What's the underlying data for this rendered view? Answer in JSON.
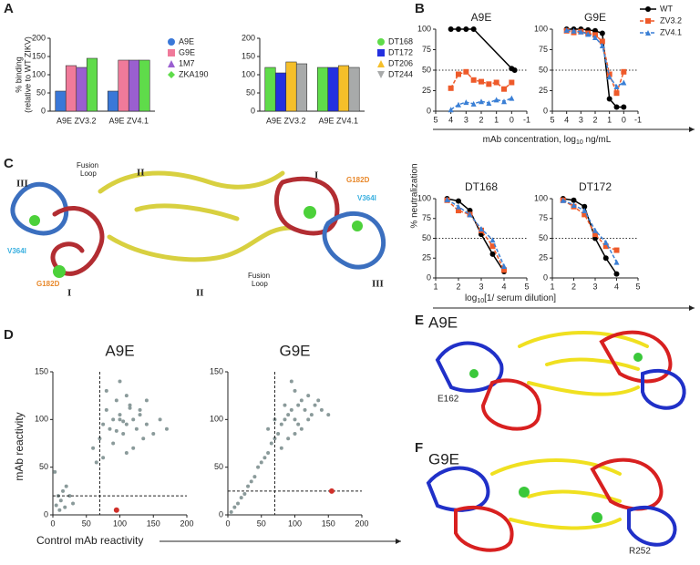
{
  "panel_labels": [
    "A",
    "B",
    "C",
    "D",
    "E",
    "F"
  ],
  "shared_labels": {
    "neutralization_ylabel": "% neutralization",
    "mab_xlabel": [
      "mAb concentration, log",
      "10",
      " ng/mL"
    ],
    "serum_xlabel": [
      "log",
      "10",
      "[1/ serum dilution]"
    ],
    "scatter_ylabel": "mAb reactivity",
    "scatter_xlabel": "Control mAb reactivity"
  },
  "structures": {
    "C": {
      "domains": [
        "III",
        "II",
        "I",
        "I",
        "II",
        "III"
      ],
      "fusion_loop": [
        "Fusion",
        "Loop"
      ],
      "mutations": [
        "G182D",
        "V364I",
        "V364I",
        "G182D"
      ]
    },
    "E": {
      "title": "A9E",
      "residue": "E162"
    },
    "F": {
      "title": "G9E",
      "residue": "R252"
    }
  },
  "chart_data": [
    {
      "type": "bar",
      "ylabel": [
        "% binding",
        "(relative to WT ZIKV)"
      ],
      "categories": [
        "A9E ZV3.2",
        "A9E ZV4.1"
      ],
      "series": [
        {
          "name": "A9E",
          "color": "#3a78d8",
          "marker": "circle",
          "values": [
            55,
            55
          ]
        },
        {
          "name": "G9E",
          "color": "#f07a9a",
          "marker": "square",
          "values": [
            125,
            140
          ]
        },
        {
          "name": "1M7",
          "color": "#9a5fd0",
          "marker": "triangle",
          "values": [
            120,
            140
          ]
        },
        {
          "name": "ZKA190",
          "color": "#5fdc4a",
          "marker": "diamond",
          "values": [
            145,
            140
          ]
        }
      ],
      "ylim": [
        0,
        200
      ],
      "yticks": [
        0,
        50,
        100,
        150,
        200
      ]
    },
    {
      "type": "bar",
      "categories": [
        "A9E ZV3.2",
        "A9E ZV4.1"
      ],
      "series": [
        {
          "name": "DT168",
          "color": "#5fdc4a",
          "marker": "circle",
          "values": [
            120,
            120
          ]
        },
        {
          "name": "DT172",
          "color": "#2430e0",
          "marker": "square",
          "values": [
            105,
            120
          ]
        },
        {
          "name": "DT206",
          "color": "#f5bf2a",
          "marker": "triangle",
          "values": [
            135,
            125
          ]
        },
        {
          "name": "DT244",
          "color": "#a8aaaa",
          "marker": "invtriangle",
          "values": [
            130,
            120
          ]
        }
      ],
      "ylim": [
        0,
        200
      ],
      "yticks": [
        0,
        50,
        100,
        150,
        200
      ]
    },
    {
      "type": "line",
      "title": "A9E",
      "xlim": [
        5,
        -1
      ],
      "xticks": [
        5,
        4,
        3,
        2,
        1,
        0,
        -1
      ],
      "ylim": [
        0,
        100
      ],
      "yticks": [
        0,
        25,
        50,
        75,
        100
      ],
      "reference": 50,
      "series": [
        {
          "name": "WT",
          "color": "#000000",
          "marker": "circle",
          "dash": false,
          "x": [
            4,
            3.5,
            3,
            2.5,
            0,
            -0.2
          ],
          "values": [
            100,
            100,
            100,
            100,
            52,
            50
          ]
        },
        {
          "name": "ZV3.2",
          "color": "#ee5a2a",
          "marker": "square",
          "dash": true,
          "x": [
            4,
            3.5,
            3,
            2.5,
            2,
            1.5,
            1,
            0.5,
            0
          ],
          "values": [
            28,
            45,
            48,
            38,
            36,
            33,
            35,
            27,
            35
          ]
        },
        {
          "name": "ZV4.1",
          "color": "#3a7fd5",
          "marker": "triangle",
          "dash": true,
          "x": [
            4,
            3.5,
            3,
            2.5,
            2,
            1.5,
            1,
            0.5,
            0
          ],
          "values": [
            2,
            8,
            11,
            9,
            12,
            10,
            14,
            12,
            16
          ]
        }
      ]
    },
    {
      "type": "line",
      "title": "G9E",
      "xlim": [
        5,
        -1
      ],
      "xticks": [
        5,
        4,
        3,
        2,
        1,
        0,
        -1
      ],
      "ylim": [
        0,
        100
      ],
      "yticks": [
        0,
        25,
        50,
        75,
        100
      ],
      "reference": 50,
      "series": [
        {
          "color": "#000000",
          "marker": "circle",
          "dash": false,
          "x": [
            4,
            3.5,
            3,
            2.5,
            2,
            1.5,
            1,
            0.5,
            0
          ],
          "values": [
            100,
            100,
            100,
            99,
            98,
            95,
            15,
            5,
            5
          ]
        },
        {
          "color": "#ee5a2a",
          "marker": "square",
          "dash": true,
          "x": [
            4,
            3.5,
            3,
            2.5,
            2,
            1.5,
            1,
            0.5,
            0
          ],
          "values": [
            98,
            96,
            97,
            95,
            93,
            85,
            45,
            22,
            48
          ]
        },
        {
          "color": "#3a7fd5",
          "marker": "triangle",
          "dash": true,
          "x": [
            4,
            3.5,
            3,
            2.5,
            2,
            1.5,
            1,
            0.5,
            0
          ],
          "values": [
            99,
            98,
            97,
            94,
            90,
            80,
            42,
            30,
            35
          ]
        }
      ]
    },
    {
      "type": "line",
      "title": "DT168",
      "xlim": [
        1,
        5
      ],
      "xticks": [
        1,
        2,
        3,
        4,
        5
      ],
      "ylim": [
        0,
        100
      ],
      "yticks": [
        0,
        25,
        50,
        75,
        100
      ],
      "reference": 50,
      "series": [
        {
          "color": "#000000",
          "marker": "circle",
          "dash": false,
          "x": [
            1.5,
            2,
            2.5,
            3,
            3.5,
            4
          ],
          "values": [
            100,
            97,
            85,
            55,
            30,
            8
          ]
        },
        {
          "color": "#ee5a2a",
          "marker": "square",
          "dash": true,
          "x": [
            1.5,
            2,
            2.5,
            3,
            3.5,
            4
          ],
          "values": [
            98,
            85,
            80,
            60,
            40,
            10
          ]
        },
        {
          "color": "#3a7fd5",
          "marker": "triangle",
          "dash": true,
          "x": [
            1.5,
            2,
            2.5,
            3,
            3.5,
            4
          ],
          "values": [
            99,
            90,
            80,
            62,
            48,
            15
          ]
        }
      ]
    },
    {
      "type": "line",
      "title": "DT172",
      "xlim": [
        1,
        5
      ],
      "xticks": [
        1,
        2,
        3,
        4,
        5
      ],
      "ylim": [
        0,
        100
      ],
      "yticks": [
        0,
        25,
        50,
        75,
        100
      ],
      "reference": 50,
      "series": [
        {
          "color": "#000000",
          "marker": "circle",
          "dash": false,
          "x": [
            1.5,
            2,
            2.5,
            3,
            3.5,
            4
          ],
          "values": [
            100,
            98,
            90,
            50,
            25,
            5
          ]
        },
        {
          "color": "#ee5a2a",
          "marker": "square",
          "dash": true,
          "x": [
            1.5,
            2,
            2.5,
            3,
            3.5,
            4
          ],
          "values": [
            98,
            90,
            80,
            55,
            40,
            35
          ]
        },
        {
          "color": "#3a7fd5",
          "marker": "triangle",
          "dash": true,
          "x": [
            1.5,
            2,
            2.5,
            3,
            3.5,
            4
          ],
          "values": [
            98,
            92,
            85,
            60,
            45,
            20
          ]
        }
      ]
    },
    {
      "type": "scatter",
      "title": "A9E",
      "color": "#8a9a9a",
      "xlim": [
        0,
        200
      ],
      "xticks": [
        0,
        50,
        100,
        150,
        200
      ],
      "ylim": [
        0,
        150
      ],
      "yticks": [
        0,
        50,
        100,
        150
      ],
      "vline": 70,
      "hline": 20,
      "highlight": {
        "x": 95,
        "y": 5,
        "color": "#d0302a"
      },
      "x": [
        5,
        8,
        10,
        12,
        15,
        18,
        20,
        3,
        25,
        30,
        60,
        70,
        75,
        80,
        85,
        90,
        95,
        100,
        105,
        110,
        115,
        120,
        125,
        130,
        135,
        140,
        150,
        160,
        170,
        80,
        90,
        100,
        110,
        120,
        130,
        100,
        110,
        95,
        105,
        115,
        75,
        140,
        65
      ],
      "values": [
        10,
        20,
        5,
        15,
        25,
        8,
        30,
        45,
        20,
        12,
        70,
        80,
        95,
        110,
        90,
        100,
        120,
        105,
        85,
        95,
        115,
        100,
        90,
        110,
        80,
        95,
        85,
        100,
        90,
        130,
        75,
        140,
        125,
        70,
        105,
        100,
        65,
        88,
        98,
        112,
        60,
        120,
        55
      ]
    },
    {
      "type": "scatter",
      "title": "G9E",
      "color": "#8a9a9a",
      "xlim": [
        0,
        200
      ],
      "xticks": [
        0,
        50,
        100,
        150,
        200
      ],
      "ylim": [
        0,
        150
      ],
      "yticks": [
        0,
        50,
        100,
        150
      ],
      "vline": 70,
      "hline": 25,
      "highlight": {
        "x": 155,
        "y": 25,
        "color": "#d0302a"
      },
      "x": [
        5,
        10,
        15,
        20,
        25,
        30,
        35,
        40,
        45,
        50,
        55,
        60,
        65,
        70,
        75,
        80,
        85,
        90,
        95,
        100,
        105,
        110,
        115,
        120,
        125,
        130,
        135,
        140,
        150,
        80,
        90,
        100,
        110,
        85,
        95,
        105,
        60,
        70,
        120,
        100
      ],
      "values": [
        3,
        8,
        12,
        18,
        22,
        30,
        35,
        40,
        50,
        55,
        60,
        65,
        75,
        80,
        85,
        95,
        100,
        105,
        110,
        100,
        115,
        120,
        110,
        125,
        105,
        115,
        120,
        110,
        105,
        70,
        80,
        130,
        90,
        115,
        140,
        95,
        90,
        100,
        100,
        85
      ]
    }
  ]
}
